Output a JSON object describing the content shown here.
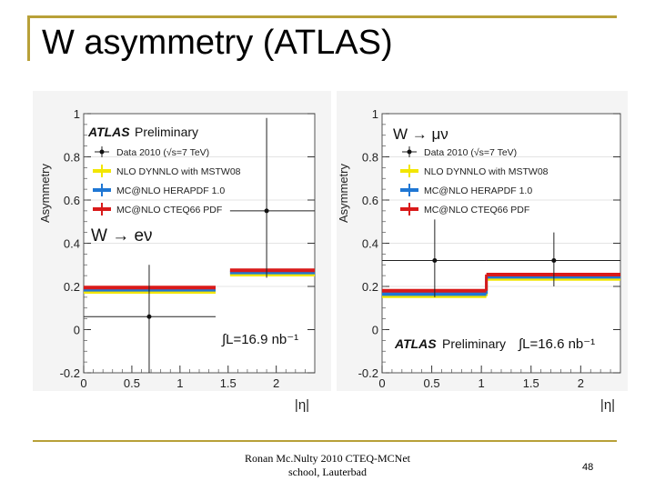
{
  "slide": {
    "title": "W asymmetry (ATLAS)",
    "footer_line1": "Ronan Mc.Nulty 2010 CTEQ-MCNet",
    "footer_line2": "school, Lauterbad",
    "page_number": "48"
  },
  "chart_data": [
    {
      "type": "scatter",
      "ylabel": "Asymmetry",
      "xlabel": "|η|",
      "xlim": [
        0,
        2.4
      ],
      "ylim": [
        -0.2,
        1.0
      ],
      "xticks": [
        "0",
        "0.5",
        "1",
        "1.5",
        "2"
      ],
      "yticks": [
        "-0.2",
        "0",
        "0.2",
        "0.4",
        "0.6",
        "0.8",
        "1"
      ],
      "atlas_label": "ATLAS",
      "atlas_sub": "Preliminary",
      "channel_label": "W → eν",
      "lumi_label": "∫L=16.9 nb⁻¹",
      "legend": [
        "Data 2010 (√s=7 TeV)",
        "NLO DYNNLO with MSTW08",
        "MC@NLO HERAPDF 1.0",
        "MC@NLO CTEQ66 PDF"
      ],
      "data_points": [
        {
          "x": 0.68,
          "y": 0.06,
          "xlo": 0.0,
          "xhi": 1.37,
          "ylo": -0.2,
          "yhi": 0.3
        },
        {
          "x": 1.9,
          "y": 0.55,
          "xlo": 1.52,
          "xhi": 2.4,
          "ylo": 0.24,
          "yhi": 0.98
        }
      ],
      "series": [
        {
          "name": "NLO DYNNLO with MSTW08",
          "color": "#f2e600",
          "bins": [
            [
              0.0,
              1.37,
              0.175
            ],
            [
              1.52,
              2.4,
              0.255
            ]
          ]
        },
        {
          "name": "MC@NLO HERAPDF 1.0",
          "color": "#1f77d4",
          "bins": [
            [
              0.0,
              1.37,
              0.185
            ],
            [
              1.52,
              2.4,
              0.265
            ]
          ]
        },
        {
          "name": "MC@NLO CTEQ66 PDF",
          "color": "#d91a1a",
          "bins": [
            [
              0.0,
              1.37,
              0.195
            ],
            [
              1.52,
              2.4,
              0.275
            ]
          ]
        }
      ]
    },
    {
      "type": "scatter",
      "ylabel": "Asymmetry",
      "xlabel": "|η|",
      "xlim": [
        0,
        2.4
      ],
      "ylim": [
        -0.2,
        1.0
      ],
      "xticks": [
        "0",
        "0.5",
        "1",
        "1.5",
        "2"
      ],
      "yticks": [
        "-0.2",
        "0",
        "0.2",
        "0.4",
        "0.6",
        "0.8",
        "1"
      ],
      "atlas_label": "ATLAS",
      "atlas_sub": "Preliminary",
      "channel_label": "W → μν",
      "lumi_label": "∫L=16.6 nb⁻¹",
      "legend": [
        "Data 2010 (√s=7 TeV)",
        "NLO DYNNLO with MSTW08",
        "MC@NLO HERAPDF 1.0",
        "MC@NLO CTEQ66 PDF"
      ],
      "data_points": [
        {
          "x": 0.53,
          "y": 0.32,
          "xlo": 0.0,
          "xhi": 1.05,
          "ylo": 0.15,
          "yhi": 0.51
        },
        {
          "x": 1.73,
          "y": 0.32,
          "xlo": 1.05,
          "xhi": 2.4,
          "ylo": 0.2,
          "yhi": 0.45
        }
      ],
      "series": [
        {
          "name": "NLO DYNNLO with MSTW08",
          "color": "#f2e600",
          "bins": [
            [
              0.0,
              1.05,
              0.155
            ],
            [
              1.05,
              2.4,
              0.235
            ]
          ]
        },
        {
          "name": "MC@NLO HERAPDF 1.0",
          "color": "#1f77d4",
          "bins": [
            [
              0.0,
              1.05,
              0.165
            ],
            [
              1.05,
              2.4,
              0.245
            ]
          ]
        },
        {
          "name": "MC@NLO CTEQ66 PDF",
          "color": "#d91a1a",
          "bins": [
            [
              0.0,
              1.05,
              0.18
            ],
            [
              1.05,
              2.4,
              0.255
            ]
          ]
        }
      ]
    }
  ]
}
